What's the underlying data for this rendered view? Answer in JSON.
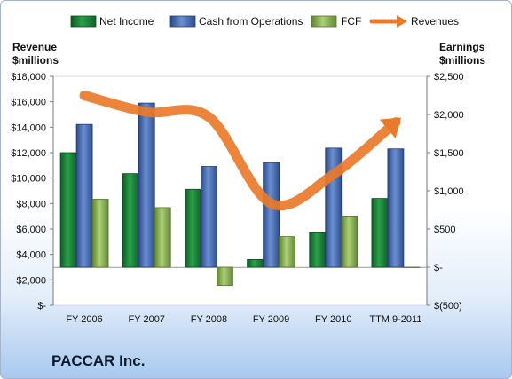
{
  "company": "PACCAR Inc.",
  "chart_data": {
    "type": "bar",
    "categories": [
      "FY 2006",
      "FY 2007",
      "FY 2008",
      "FY 2009",
      "FY 2010",
      "TTM 9-2011"
    ],
    "left_axis": {
      "title_line1": "Revenue",
      "title_line2": "$millions",
      "ylim": [
        0,
        18000
      ],
      "ticks": [
        0,
        2000,
        4000,
        6000,
        8000,
        10000,
        12000,
        14000,
        16000,
        18000
      ],
      "tick_labels": [
        "$-",
        "$2,000",
        "$4,000",
        "$6,000",
        "$8,000",
        "$10,000",
        "$12,000",
        "$14,000",
        "$16,000",
        "$18,000"
      ]
    },
    "right_axis": {
      "title_line1": "Earnings",
      "title_line2": "$millions",
      "ylim": [
        -500,
        2500
      ],
      "ticks": [
        -500,
        0,
        500,
        1000,
        1500,
        2000,
        2500
      ],
      "tick_labels": [
        "$(500)",
        "$-",
        "$500",
        "$1,000",
        "$1,500",
        "$2,000",
        "$2,500"
      ]
    },
    "series": [
      {
        "name": "Net Income",
        "axis": "right",
        "type": "bar",
        "color": "#1f8a3c",
        "values": [
          1500,
          1225,
          1020,
          100,
          460,
          900
        ]
      },
      {
        "name": "Cash from Operations",
        "axis": "right",
        "type": "bar",
        "color": "#4a6fb8",
        "values": [
          1870,
          2150,
          1320,
          1370,
          1560,
          1550
        ]
      },
      {
        "name": "FCF",
        "axis": "right",
        "type": "bar",
        "color": "#8db155",
        "values": [
          890,
          780,
          -240,
          400,
          670,
          0
        ]
      },
      {
        "name": "Revenues",
        "axis": "left",
        "type": "line",
        "color": "#ea7a2a",
        "values": [
          16500,
          15200,
          14800,
          8000,
          10300,
          14400
        ]
      }
    ],
    "legend_position": "top",
    "grid": false
  }
}
